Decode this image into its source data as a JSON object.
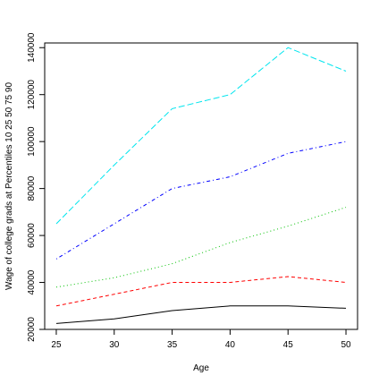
{
  "chart_data": {
    "type": "line",
    "title": "",
    "xlabel": "Age",
    "ylabel": "Wage of college grads at Percentiles 10 25 50 75 90",
    "x": [
      25,
      30,
      35,
      40,
      45,
      50
    ],
    "xlim": [
      24,
      51
    ],
    "ylim": [
      20000,
      142000
    ],
    "xticks": [
      25,
      30,
      35,
      40,
      45,
      50
    ],
    "yticks": [
      20000,
      40000,
      60000,
      80000,
      100000,
      120000,
      140000
    ],
    "grid": false,
    "legend": "none",
    "series": [
      {
        "percentile": 10,
        "color": "#000000",
        "dash": "solid",
        "values": [
          22500,
          24500,
          28000,
          30000,
          30000,
          29000
        ]
      },
      {
        "percentile": 25,
        "color": "#ff0000",
        "dash": "dashed",
        "values": [
          30000,
          35000,
          40000,
          40000,
          42500,
          40000
        ]
      },
      {
        "percentile": 50,
        "color": "#00c000",
        "dash": "dotted",
        "values": [
          38000,
          42000,
          48000,
          57000,
          64000,
          72000
        ]
      },
      {
        "percentile": 75,
        "color": "#0000ff",
        "dash": "dotdash",
        "values": [
          50000,
          65000,
          80000,
          85000,
          95000,
          100000
        ]
      },
      {
        "percentile": 90,
        "color": "#00e5ee",
        "dash": "longdash",
        "values": [
          65000,
          90000,
          114000,
          120000,
          140000,
          130000
        ]
      }
    ]
  }
}
